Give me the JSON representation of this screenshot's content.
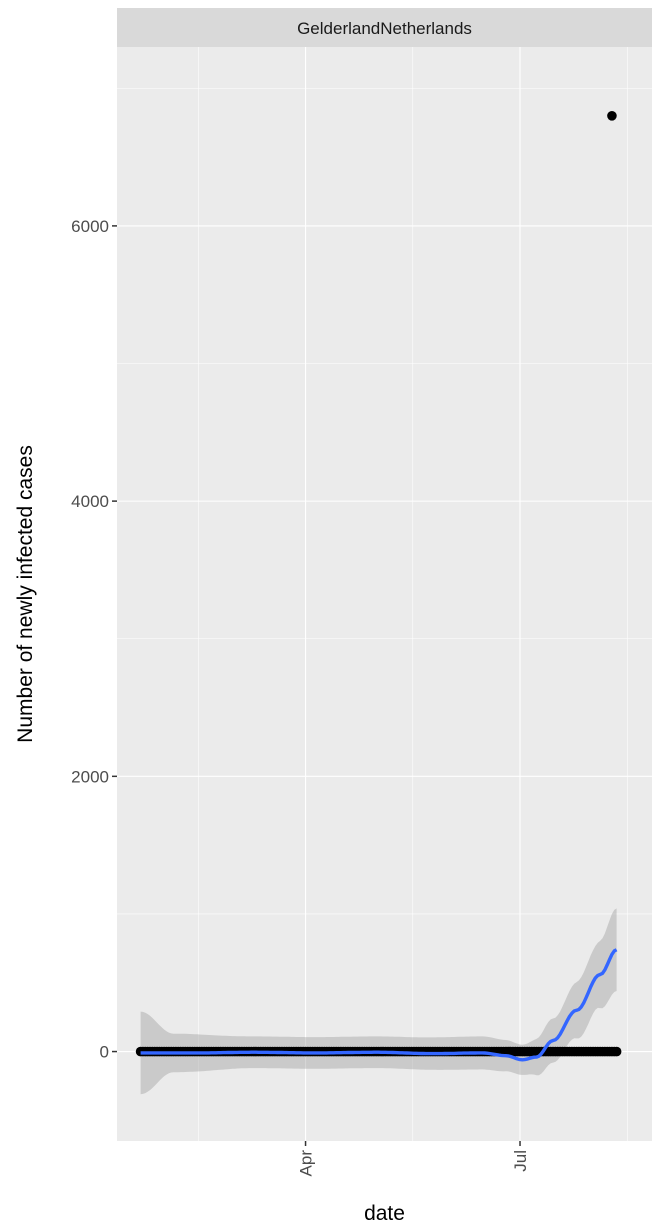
{
  "chart_data": {
    "type": "scatter",
    "facet_label": "GelderlandNetherlands",
    "xlabel": "date",
    "ylabel": "Number of newly infected cases",
    "x_ticks": [
      {
        "date": "2020-04-01",
        "label": "Apr"
      },
      {
        "date": "2020-07-01",
        "label": "Jul"
      }
    ],
    "y_ticks": [
      0,
      2000,
      4000,
      6000
    ],
    "ylim": [
      -650,
      7300
    ],
    "xlim": [
      "2020-01-12",
      "2020-08-26"
    ],
    "points_range": {
      "start": "2020-01-22",
      "end": "2020-08-11",
      "typical_value": 0
    },
    "outlier_point": {
      "date": "2020-08-09",
      "value": 6800
    },
    "smooth": [
      {
        "date": "2020-01-22",
        "value": -10
      },
      {
        "date": "2020-02-15",
        "value": -10
      },
      {
        "date": "2020-03-10",
        "value": -5
      },
      {
        "date": "2020-04-05",
        "value": -10
      },
      {
        "date": "2020-05-01",
        "value": -5
      },
      {
        "date": "2020-05-25",
        "value": -15
      },
      {
        "date": "2020-06-15",
        "value": -10
      },
      {
        "date": "2020-06-25",
        "value": -30
      },
      {
        "date": "2020-07-02",
        "value": -60
      },
      {
        "date": "2020-07-08",
        "value": -40
      },
      {
        "date": "2020-07-15",
        "value": 80
      },
      {
        "date": "2020-07-25",
        "value": 300
      },
      {
        "date": "2020-08-04",
        "value": 560
      },
      {
        "date": "2020-08-11",
        "value": 740
      }
    ],
    "ribbon_halfwidth": [
      {
        "date": "2020-01-22",
        "value": 300
      },
      {
        "date": "2020-02-05",
        "value": 140
      },
      {
        "date": "2020-03-10",
        "value": 115
      },
      {
        "date": "2020-05-01",
        "value": 115
      },
      {
        "date": "2020-06-15",
        "value": 120
      },
      {
        "date": "2020-07-02",
        "value": 110
      },
      {
        "date": "2020-07-15",
        "value": 160
      },
      {
        "date": "2020-08-01",
        "value": 230
      },
      {
        "date": "2020-08-11",
        "value": 300
      }
    ],
    "colors": {
      "panel": "#ebebeb",
      "grid": "#ffffff",
      "strip": "#d9d9d9",
      "points": "#000000",
      "smooth": "#3366ff",
      "ribbon": "#999999"
    }
  }
}
